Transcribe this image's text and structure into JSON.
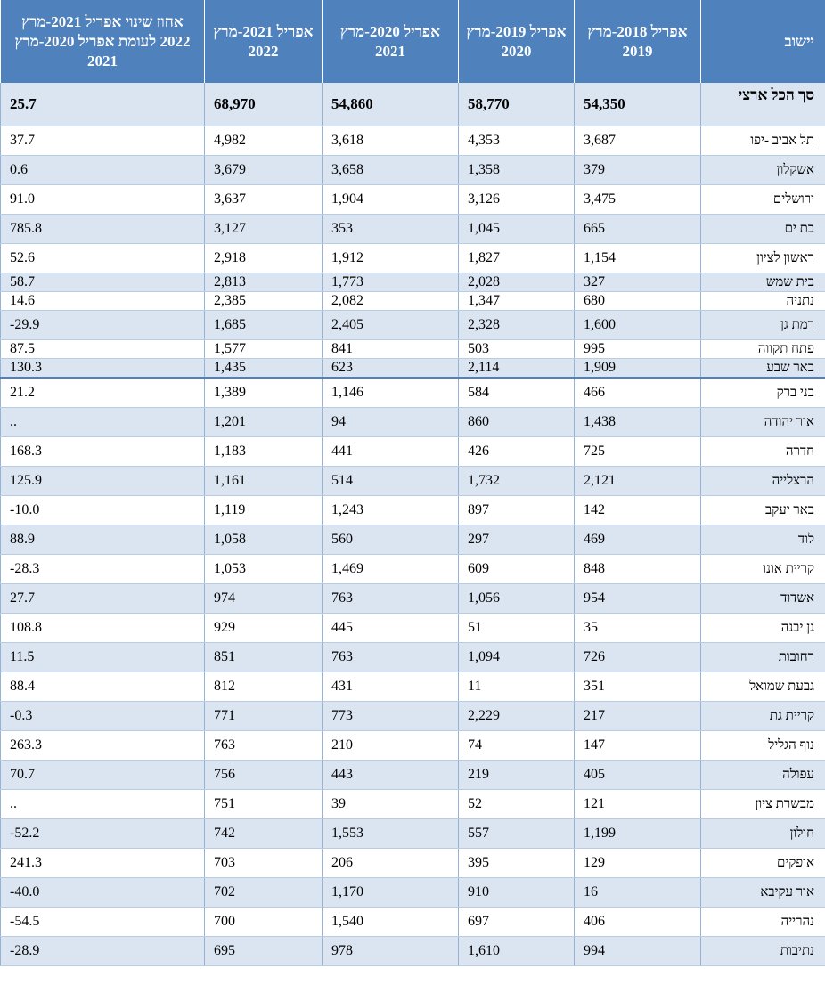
{
  "headers": {
    "city": "יישוב",
    "y1": "אפריל 2018-מרץ 2019",
    "y2": "אפריל 2019-מרץ 2020",
    "y3": "אפריל 2020-מרץ 2021",
    "y4": "אפריל 2021-מרץ 2022",
    "pct": "אחוז שינוי אפריל 2021-מרץ 2022 לעומת אפריל 2020-מרץ 2021"
  },
  "rows": [
    {
      "city": "סך הכל ארצי",
      "y1": "54,350",
      "y2": "58,770",
      "y3": "54,860",
      "y4": "68,970",
      "pct": "25.7"
    },
    {
      "city": "תל אביב -יפו",
      "y1": "3,687",
      "y2": "4,353",
      "y3": "3,618",
      "y4": "4,982",
      "pct": "37.7"
    },
    {
      "city": "אשקלון",
      "y1": "379",
      "y2": "1,358",
      "y3": "3,658",
      "y4": "3,679",
      "pct": "0.6"
    },
    {
      "city": "ירושלים",
      "y1": "3,475",
      "y2": "3,126",
      "y3": "1,904",
      "y4": "3,637",
      "pct": "91.0"
    },
    {
      "city": "בת ים",
      "y1": "665",
      "y2": "1,045",
      "y3": "353",
      "y4": "3,127",
      "pct": "785.8"
    },
    {
      "city": "ראשון לציון",
      "y1": "1,154",
      "y2": "1,827",
      "y3": "1,912",
      "y4": "2,918",
      "pct": "52.6"
    },
    {
      "city": "בית שמש",
      "y1": "327",
      "y2": "2,028",
      "y3": "1,773",
      "y4": "2,813",
      "pct": "58.7"
    },
    {
      "city": "נתניה",
      "y1": "680",
      "y2": "1,347",
      "y3": "2,082",
      "y4": "2,385",
      "pct": "14.6"
    },
    {
      "city": "רמת גן",
      "y1": "1,600",
      "y2": "2,328",
      "y3": "2,405",
      "y4": "1,685",
      "pct": "29.9-"
    },
    {
      "city": "פתח תקווה",
      "y1": "995",
      "y2": "503",
      "y3": "841",
      "y4": "1,577",
      "pct": "87.5"
    },
    {
      "city": "באר שבע",
      "y1": "1,909",
      "y2": "2,114",
      "y3": "623",
      "y4": "1,435",
      "pct": "130.3"
    },
    {
      "city": "בני ברק",
      "y1": "466",
      "y2": "584",
      "y3": "1,146",
      "y4": "1,389",
      "pct": "21.2"
    },
    {
      "city": "אור יהודה",
      "y1": "1,438",
      "y2": "860",
      "y3": "94",
      "y4": "1,201",
      "pct": ".."
    },
    {
      "city": "חדרה",
      "y1": "725",
      "y2": "426",
      "y3": "441",
      "y4": "1,183",
      "pct": "168.3"
    },
    {
      "city": "הרצלייה",
      "y1": "2,121",
      "y2": "1,732",
      "y3": "514",
      "y4": "1,161",
      "pct": "125.9"
    },
    {
      "city": "באר יעקב",
      "y1": "142",
      "y2": "897",
      "y3": "1,243",
      "y4": "1,119",
      "pct": "10.0-"
    },
    {
      "city": "לוד",
      "y1": "469",
      "y2": "297",
      "y3": "560",
      "y4": "1,058",
      "pct": "88.9"
    },
    {
      "city": "קריית אונו",
      "y1": "848",
      "y2": "609",
      "y3": "1,469",
      "y4": "1,053",
      "pct": "28.3-"
    },
    {
      "city": "אשדוד",
      "y1": "954",
      "y2": "1,056",
      "y3": "763",
      "y4": "974",
      "pct": "27.7"
    },
    {
      "city": "גן יבנה",
      "y1": "35",
      "y2": "51",
      "y3": "445",
      "y4": "929",
      "pct": "108.8"
    },
    {
      "city": "רחובות",
      "y1": "726",
      "y2": "1,094",
      "y3": "763",
      "y4": "851",
      "pct": "11.5"
    },
    {
      "city": "גבעת שמואל",
      "y1": "351",
      "y2": "11",
      "y3": "431",
      "y4": "812",
      "pct": "88.4"
    },
    {
      "city": "קריית גת",
      "y1": "217",
      "y2": "2,229",
      "y3": "773",
      "y4": "771",
      "pct": "0.3-"
    },
    {
      "city": "נוף הגליל",
      "y1": "147",
      "y2": "74",
      "y3": "210",
      "y4": "763",
      "pct": "263.3"
    },
    {
      "city": "עפולה",
      "y1": "405",
      "y2": "219",
      "y3": "443",
      "y4": "756",
      "pct": "70.7"
    },
    {
      "city": "מבשרת ציון",
      "y1": "121",
      "y2": "52",
      "y3": "39",
      "y4": "751",
      "pct": ".."
    },
    {
      "city": "חולון",
      "y1": "1,199",
      "y2": "557",
      "y3": "1,553",
      "y4": "742",
      "pct": "52.2-"
    },
    {
      "city": "אופקים",
      "y1": "129",
      "y2": "395",
      "y3": "206",
      "y4": "703",
      "pct": "241.3"
    },
    {
      "city": "אור עקיבא",
      "y1": "16",
      "y2": "910",
      "y3": "1,170",
      "y4": "702",
      "pct": "40.0-"
    },
    {
      "city": "נהרייה",
      "y1": "406",
      "y2": "697",
      "y3": "1,540",
      "y4": "700",
      "pct": "54.5-"
    },
    {
      "city": "נתיבות",
      "y1": "994",
      "y2": "1,610",
      "y3": "978",
      "y4": "695",
      "pct": "28.9-"
    }
  ]
}
